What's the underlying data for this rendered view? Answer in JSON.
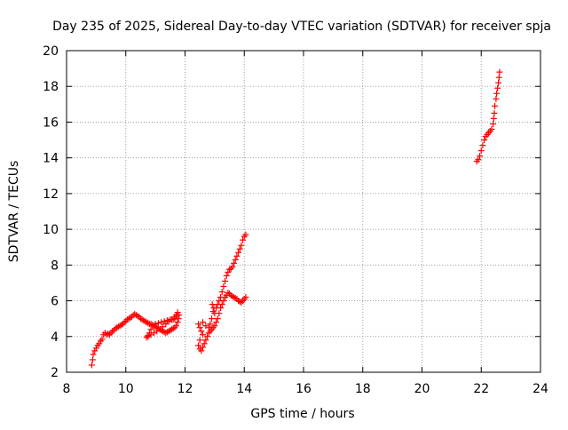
{
  "chart_data": {
    "type": "scatter",
    "title": "Day 235 of 2025, Sidereal Day-to-day VTEC variation (SDTVAR) for receiver spja",
    "xlabel": "GPS time / hours",
    "ylabel": "SDTVAR / TECUs",
    "xlim": [
      8,
      24
    ],
    "ylim": [
      2,
      20
    ],
    "xticks": [
      8,
      10,
      12,
      14,
      16,
      18,
      20,
      22,
      24
    ],
    "yticks": [
      2,
      4,
      6,
      8,
      10,
      12,
      14,
      16,
      18,
      20
    ],
    "grid": true,
    "marker": "+",
    "color": "#ff0000",
    "series": [
      {
        "values": [
          [
            8.85,
            2.4
          ],
          [
            8.88,
            2.7
          ],
          [
            8.9,
            3.0
          ],
          [
            8.95,
            3.2
          ],
          [
            9.0,
            3.35
          ],
          [
            9.05,
            3.5
          ],
          [
            9.1,
            3.6
          ],
          [
            9.15,
            3.75
          ],
          [
            9.2,
            3.85
          ],
          [
            9.25,
            4.1
          ],
          [
            9.3,
            4.2
          ],
          [
            9.35,
            4.1
          ],
          [
            9.4,
            4.15
          ],
          [
            9.45,
            4.1
          ],
          [
            9.5,
            4.2
          ],
          [
            9.55,
            4.3
          ],
          [
            9.6,
            4.35
          ],
          [
            9.65,
            4.45
          ],
          [
            9.7,
            4.5
          ],
          [
            9.75,
            4.55
          ],
          [
            9.8,
            4.6
          ],
          [
            9.85,
            4.65
          ],
          [
            9.9,
            4.7
          ],
          [
            9.95,
            4.8
          ],
          [
            10.0,
            4.85
          ],
          [
            10.05,
            4.95
          ],
          [
            10.1,
            5.0
          ],
          [
            10.15,
            5.05
          ],
          [
            10.2,
            5.1
          ],
          [
            10.25,
            5.2
          ],
          [
            10.3,
            5.25
          ],
          [
            10.35,
            5.2
          ],
          [
            10.4,
            5.15
          ],
          [
            10.45,
            5.1
          ],
          [
            10.5,
            5.0
          ],
          [
            10.55,
            4.95
          ],
          [
            10.6,
            4.9
          ],
          [
            10.65,
            4.85
          ],
          [
            10.7,
            4.8
          ],
          [
            10.75,
            4.75
          ],
          [
            10.8,
            4.7
          ],
          [
            10.85,
            4.7
          ],
          [
            10.9,
            4.65
          ],
          [
            10.95,
            4.6
          ],
          [
            11.0,
            4.55
          ],
          [
            11.05,
            4.5
          ],
          [
            11.1,
            4.45
          ],
          [
            11.15,
            4.4
          ],
          [
            11.2,
            4.35
          ],
          [
            11.25,
            4.3
          ],
          [
            11.3,
            4.25
          ],
          [
            11.35,
            4.2
          ],
          [
            11.4,
            4.25
          ],
          [
            11.45,
            4.3
          ],
          [
            11.5,
            4.35
          ],
          [
            11.55,
            4.4
          ],
          [
            11.6,
            4.45
          ],
          [
            11.65,
            4.5
          ],
          [
            11.7,
            4.6
          ],
          [
            11.75,
            4.8
          ],
          [
            11.78,
            5.0
          ],
          [
            11.8,
            5.2
          ],
          [
            11.75,
            5.35
          ],
          [
            11.7,
            5.2
          ],
          [
            11.65,
            5.0
          ],
          [
            11.6,
            4.95
          ],
          [
            11.5,
            4.95
          ],
          [
            11.4,
            4.9
          ],
          [
            11.3,
            4.85
          ],
          [
            11.2,
            4.8
          ],
          [
            11.1,
            4.75
          ],
          [
            11.0,
            4.7
          ],
          [
            10.9,
            4.6
          ],
          [
            10.85,
            4.4
          ],
          [
            10.8,
            4.2
          ],
          [
            10.75,
            4.05
          ],
          [
            10.7,
            3.95
          ],
          [
            10.75,
            4.0
          ],
          [
            10.85,
            4.1
          ],
          [
            10.95,
            4.2
          ],
          [
            11.05,
            4.3
          ],
          [
            11.15,
            4.4
          ],
          [
            11.25,
            4.55
          ],
          [
            11.35,
            4.7
          ],
          [
            11.45,
            4.85
          ],
          [
            11.55,
            4.95
          ],
          [
            11.65,
            5.1
          ],
          [
            11.72,
            5.2
          ],
          [
            12.45,
            4.7
          ],
          [
            12.5,
            4.5
          ],
          [
            12.55,
            4.3
          ],
          [
            12.6,
            4.1
          ],
          [
            12.5,
            3.8
          ],
          [
            12.45,
            3.5
          ],
          [
            12.5,
            3.3
          ],
          [
            12.55,
            3.2
          ],
          [
            12.6,
            3.4
          ],
          [
            12.65,
            3.6
          ],
          [
            12.7,
            3.8
          ],
          [
            12.75,
            4.0
          ],
          [
            12.8,
            4.2
          ],
          [
            12.85,
            4.3
          ],
          [
            12.9,
            4.4
          ],
          [
            12.95,
            4.5
          ],
          [
            13.0,
            4.6
          ],
          [
            13.05,
            4.8
          ],
          [
            13.1,
            5.0
          ],
          [
            13.15,
            5.3
          ],
          [
            13.2,
            5.6
          ],
          [
            13.25,
            5.8
          ],
          [
            13.3,
            6.0
          ],
          [
            13.35,
            6.2
          ],
          [
            13.4,
            6.3
          ],
          [
            13.45,
            6.45
          ],
          [
            13.5,
            6.4
          ],
          [
            13.55,
            6.3
          ],
          [
            13.6,
            6.25
          ],
          [
            13.65,
            6.2
          ],
          [
            13.7,
            6.15
          ],
          [
            13.75,
            6.1
          ],
          [
            13.8,
            6.0
          ],
          [
            13.85,
            5.95
          ],
          [
            13.9,
            5.9
          ],
          [
            13.95,
            6.0
          ],
          [
            14.0,
            6.1
          ],
          [
            14.05,
            6.2
          ],
          [
            12.6,
            4.8
          ],
          [
            12.7,
            4.6
          ],
          [
            12.8,
            4.5
          ],
          [
            12.85,
            4.7
          ],
          [
            12.9,
            5.0
          ],
          [
            12.95,
            5.4
          ],
          [
            12.92,
            5.8
          ],
          [
            12.97,
            5.6
          ],
          [
            13.0,
            5.3
          ],
          [
            13.05,
            5.6
          ],
          [
            13.1,
            5.8
          ],
          [
            13.15,
            6.0
          ],
          [
            13.2,
            6.2
          ],
          [
            13.25,
            6.5
          ],
          [
            13.3,
            6.8
          ],
          [
            13.35,
            7.1
          ],
          [
            13.4,
            7.4
          ],
          [
            13.45,
            7.6
          ],
          [
            13.5,
            7.75
          ],
          [
            13.55,
            7.8
          ],
          [
            13.6,
            7.9
          ],
          [
            13.65,
            8.1
          ],
          [
            13.7,
            8.3
          ],
          [
            13.75,
            8.5
          ],
          [
            13.8,
            8.7
          ],
          [
            13.85,
            8.9
          ],
          [
            13.9,
            9.1
          ],
          [
            13.95,
            9.4
          ],
          [
            14.0,
            9.6
          ],
          [
            14.05,
            9.7
          ],
          [
            21.85,
            13.8
          ],
          [
            21.9,
            13.9
          ],
          [
            21.95,
            14.1
          ],
          [
            22.0,
            14.4
          ],
          [
            22.05,
            14.7
          ],
          [
            22.1,
            15.0
          ],
          [
            22.15,
            15.2
          ],
          [
            22.2,
            15.3
          ],
          [
            22.25,
            15.4
          ],
          [
            22.3,
            15.5
          ],
          [
            22.35,
            15.6
          ],
          [
            22.4,
            15.9
          ],
          [
            22.42,
            16.2
          ],
          [
            22.44,
            16.5
          ],
          [
            22.46,
            16.9
          ],
          [
            22.5,
            17.3
          ],
          [
            22.52,
            17.6
          ],
          [
            22.55,
            17.9
          ],
          [
            22.58,
            18.2
          ],
          [
            22.6,
            18.5
          ],
          [
            22.62,
            18.8
          ]
        ]
      }
    ]
  }
}
